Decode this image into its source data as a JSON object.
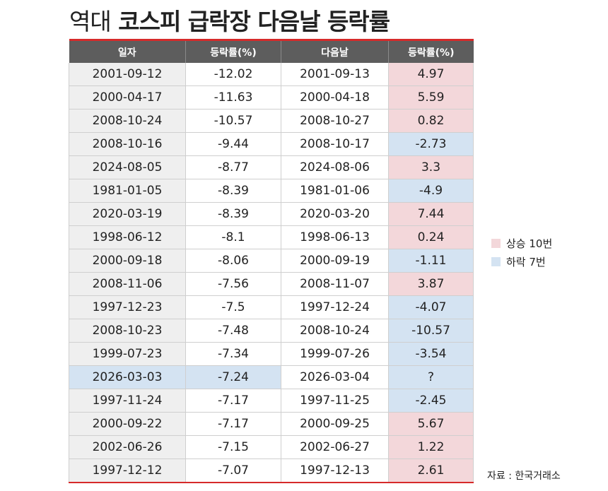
{
  "title": {
    "light": "역대",
    "bold": "코스피 급락장 다음날 등락률"
  },
  "table": {
    "headers": [
      "일자",
      "등락률(%)",
      "다음날",
      "등락률(%)"
    ],
    "rows": [
      {
        "date": "2001-09-12",
        "change": "-12.02",
        "next_date": "2001-09-13",
        "next_change": "4.97",
        "direction": "up"
      },
      {
        "date": "2000-04-17",
        "change": "-11.63",
        "next_date": "2000-04-18",
        "next_change": "5.59",
        "direction": "up"
      },
      {
        "date": "2008-10-24",
        "change": "-10.57",
        "next_date": "2008-10-27",
        "next_change": "0.82",
        "direction": "up"
      },
      {
        "date": "2008-10-16",
        "change": "-9.44",
        "next_date": "2008-10-17",
        "next_change": "-2.73",
        "direction": "down"
      },
      {
        "date": "2024-08-05",
        "change": "-8.77",
        "next_date": "2024-08-06",
        "next_change": "3.3",
        "direction": "up"
      },
      {
        "date": "1981-01-05",
        "change": "-8.39",
        "next_date": "1981-01-06",
        "next_change": "-4.9",
        "direction": "down"
      },
      {
        "date": "2020-03-19",
        "change": "-8.39",
        "next_date": "2020-03-20",
        "next_change": "7.44",
        "direction": "up"
      },
      {
        "date": "1998-06-12",
        "change": "-8.1",
        "next_date": "1998-06-13",
        "next_change": "0.24",
        "direction": "up"
      },
      {
        "date": "2000-09-18",
        "change": "-8.06",
        "next_date": "2000-09-19",
        "next_change": "-1.11",
        "direction": "down"
      },
      {
        "date": "2008-11-06",
        "change": "-7.56",
        "next_date": "2008-11-07",
        "next_change": "3.87",
        "direction": "up"
      },
      {
        "date": "1997-12-23",
        "change": "-7.5",
        "next_date": "1997-12-24",
        "next_change": "-4.07",
        "direction": "down"
      },
      {
        "date": "2008-10-23",
        "change": "-7.48",
        "next_date": "2008-10-24",
        "next_change": "-10.57",
        "direction": "down"
      },
      {
        "date": "1999-07-23",
        "change": "-7.34",
        "next_date": "1999-07-26",
        "next_change": "-3.54",
        "direction": "down"
      },
      {
        "date": "2026-03-03",
        "change": "-7.24",
        "next_date": "2026-03-04",
        "next_change": "?",
        "direction": "down",
        "highlight": true
      },
      {
        "date": "1997-11-24",
        "change": "-7.17",
        "next_date": "1997-11-25",
        "next_change": "-2.45",
        "direction": "down"
      },
      {
        "date": "2000-09-22",
        "change": "-7.17",
        "next_date": "2000-09-25",
        "next_change": "5.67",
        "direction": "up"
      },
      {
        "date": "2002-06-26",
        "change": "-7.15",
        "next_date": "2002-06-27",
        "next_change": "1.22",
        "direction": "up"
      },
      {
        "date": "1997-12-12",
        "change": "-7.07",
        "next_date": "1997-12-13",
        "next_change": "2.61",
        "direction": "up"
      }
    ]
  },
  "legend": {
    "up_label": "상승 10번",
    "down_label": "하락 7번"
  },
  "source": "자료 : 한국거래소",
  "colors": {
    "accent_rule": "#d62a2a",
    "header_bg": "#5d5d5d",
    "up_fill": "#f3d7da",
    "down_fill": "#d4e3f2",
    "date_fill": "#efefef"
  }
}
